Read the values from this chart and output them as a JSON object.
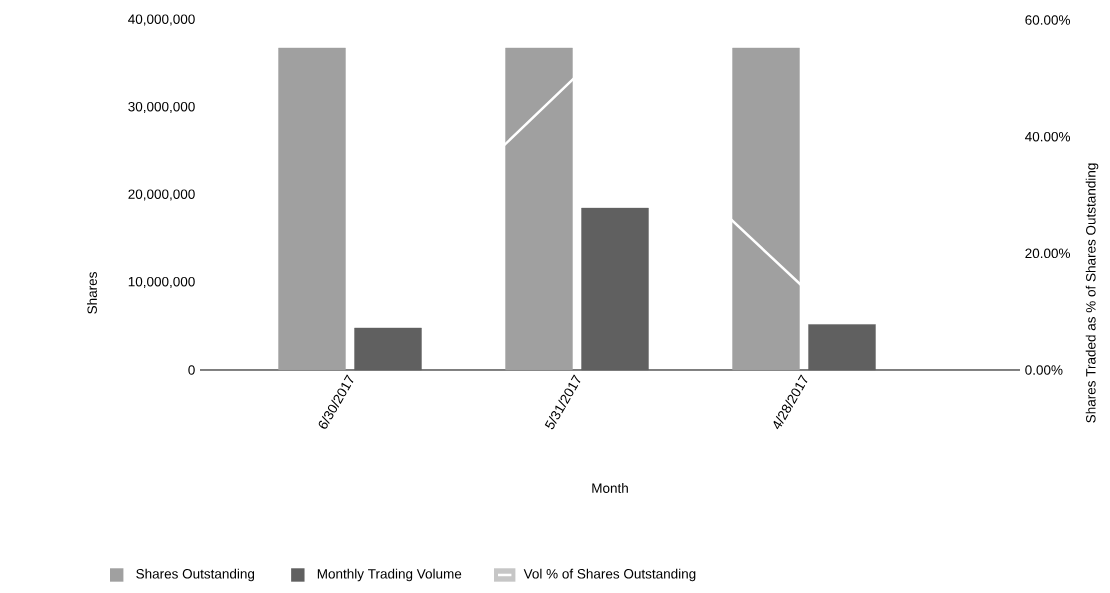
{
  "chart_data": {
    "type": "bar",
    "xlabel": "Month",
    "ylabel": "Shares",
    "y2label": "Shares Traded as % of Shares Outstanding",
    "categories": [
      "6/30/2017",
      "5/31/2017",
      "4/28/2017"
    ],
    "series": [
      {
        "name": "Shares Outstanding",
        "color": "#a0a0a0",
        "values": [
          36800000,
          36800000,
          36800000
        ]
      },
      {
        "name": "Monthly Trading Volume",
        "color": "#606060",
        "values": [
          4800000,
          18500000,
          5200000
        ]
      },
      {
        "name": "Vol % of Shares Outstanding",
        "type": "line",
        "axis": "y2",
        "color": "#ffffff",
        "values": [
          13.2,
          50.5,
          14.1
        ]
      }
    ],
    "ylim": [
      0,
      40000000
    ],
    "yticks": [
      {
        "value": 0,
        "label": "0"
      },
      {
        "value": 10000000,
        "label": "10,000,000"
      },
      {
        "value": 20000000,
        "label": "20,000,000"
      },
      {
        "value": 30000000,
        "label": "30,000,000"
      },
      {
        "value": 40000000,
        "label": "40,000,000"
      }
    ],
    "y2lim": [
      0,
      60
    ],
    "y2ticks": [
      {
        "value": 0,
        "label": "0.00%"
      },
      {
        "value": 20,
        "label": "20.00%"
      },
      {
        "value": 40,
        "label": "40.00%"
      },
      {
        "value": 60,
        "label": "60.00%"
      }
    ],
    "legend": "bottom",
    "grid": false
  }
}
